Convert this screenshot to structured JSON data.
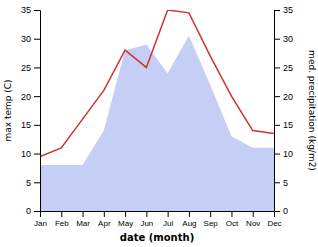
{
  "chart_data": {
    "type": "line",
    "xlabel": "date (month)",
    "ylabel": "max temp (C)",
    "y2label": "med. precipitation (kg/m2)",
    "categories": [
      "Jan",
      "Feb",
      "Mar",
      "Apr",
      "May",
      "Jun",
      "Jul",
      "Aug",
      "Sep",
      "Oct",
      "Nov",
      "Dec"
    ],
    "series": [
      {
        "type": "area",
        "axis": "y2",
        "color": "#c5cef5",
        "values": [
          8.0,
          8.0,
          8.0,
          14.0,
          28.0,
          29.0,
          24.0,
          30.5,
          22.0,
          13.0,
          11.0,
          11.0
        ]
      },
      {
        "type": "line",
        "color": "#cc3333",
        "values": [
          9.5,
          11.0,
          16.0,
          21.0,
          28.0,
          25.0,
          35.0,
          34.5,
          27.0,
          20.0,
          14.0,
          13.5
        ]
      }
    ],
    "ylim": [
      0,
      35
    ],
    "yticks": [
      0,
      5,
      10,
      15,
      20,
      25,
      30,
      35
    ],
    "y2lim": [
      0,
      35
    ],
    "y2ticks": [
      0,
      5,
      10,
      15,
      20,
      25,
      30,
      35
    ],
    "grid": false
  }
}
